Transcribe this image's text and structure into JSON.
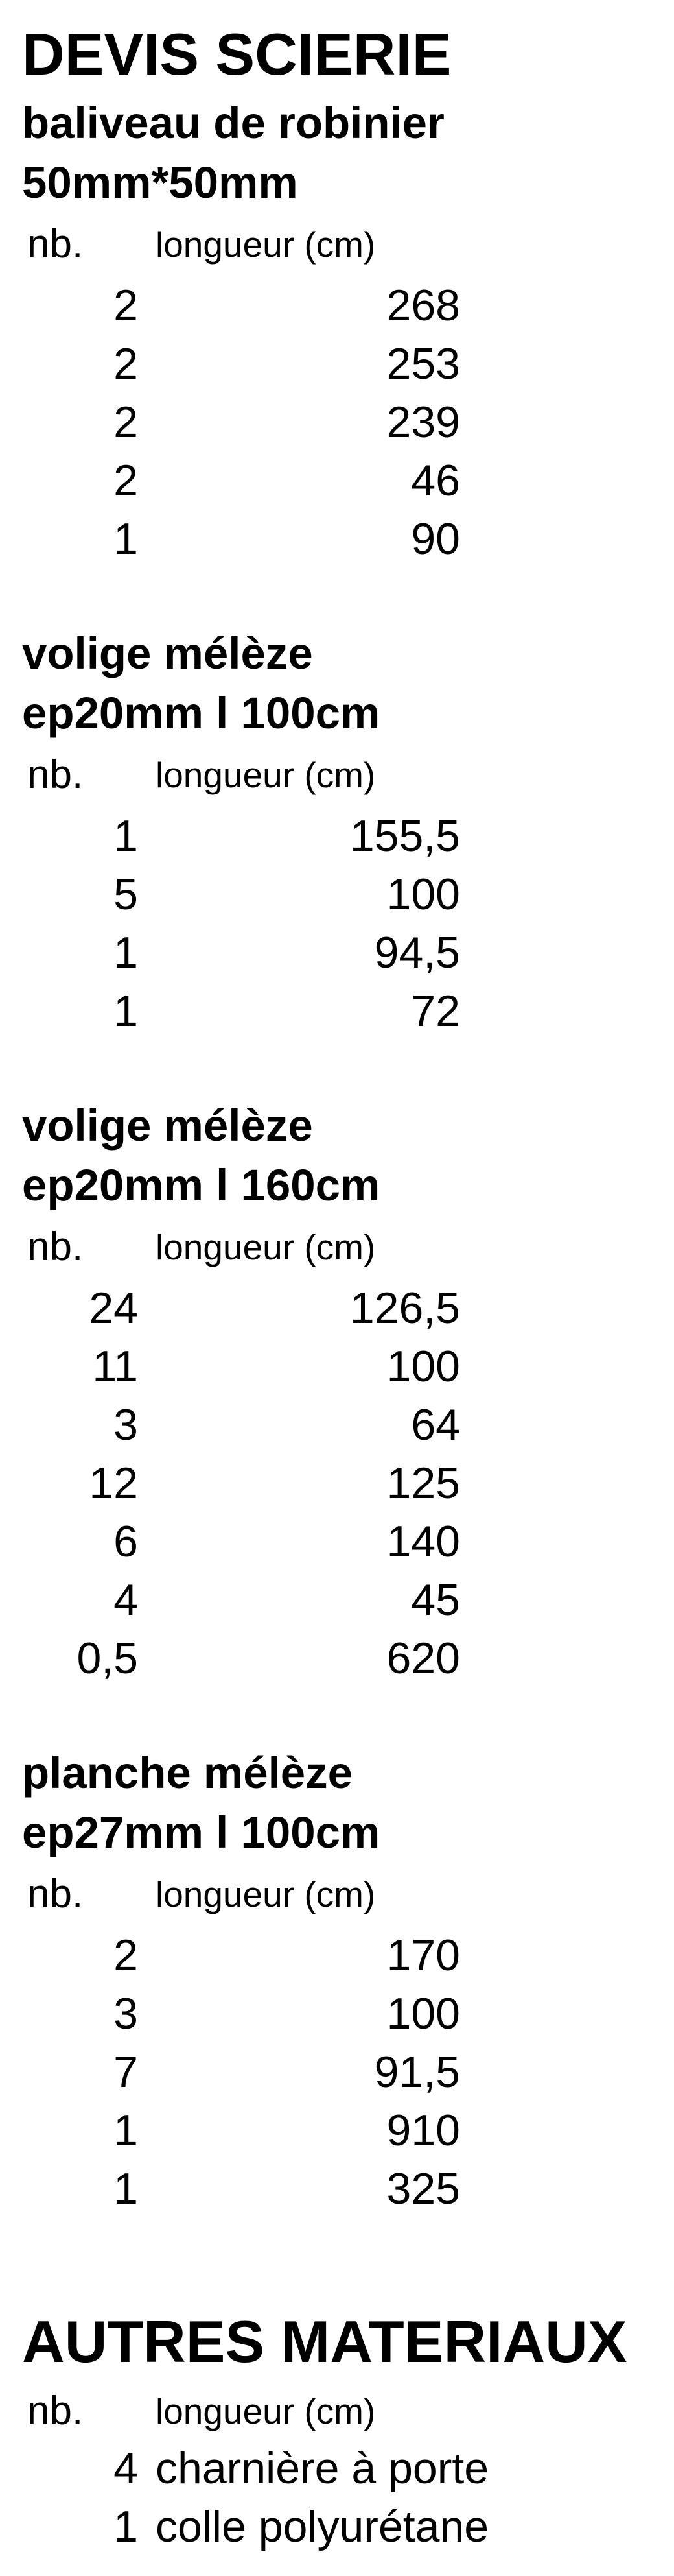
{
  "page": {
    "title": "DEVIS SCIERIE",
    "col_header_nb": "nb.",
    "col_header_length": "longueur (cm)"
  },
  "sections": [
    {
      "heading_line1": "baliveau de robinier",
      "heading_line2": "50mm*50mm",
      "rows": [
        [
          "2",
          "268"
        ],
        [
          "2",
          "253"
        ],
        [
          "2",
          "239"
        ],
        [
          "2",
          "46"
        ],
        [
          "1",
          "90"
        ]
      ]
    },
    {
      "heading_line1": "volige mélèze",
      "heading_line2": "ep20mm l 100cm",
      "rows": [
        [
          "1",
          "155,5"
        ],
        [
          "5",
          "100"
        ],
        [
          "1",
          "94,5"
        ],
        [
          "1",
          "72"
        ]
      ]
    },
    {
      "heading_line1": "volige mélèze",
      "heading_line2": "ep20mm l 160cm",
      "rows": [
        [
          "24",
          "126,5"
        ],
        [
          "11",
          "100"
        ],
        [
          "3",
          "64"
        ],
        [
          "12",
          "125"
        ],
        [
          "6",
          "140"
        ],
        [
          "4",
          "45"
        ],
        [
          "0,5",
          "620"
        ]
      ]
    },
    {
      "heading_line1": "planche mélèze",
      "heading_line2": "ep27mm l 100cm",
      "rows": [
        [
          "2",
          "170"
        ],
        [
          "3",
          "100"
        ],
        [
          "7",
          "91,5"
        ],
        [
          "1",
          "910"
        ],
        [
          "1",
          "325"
        ]
      ]
    }
  ],
  "other_materials": {
    "title": "AUTRES MATERIAUX",
    "rows": [
      [
        "4",
        "charnière à porte"
      ],
      [
        "1",
        "colle polyurétane"
      ]
    ]
  }
}
